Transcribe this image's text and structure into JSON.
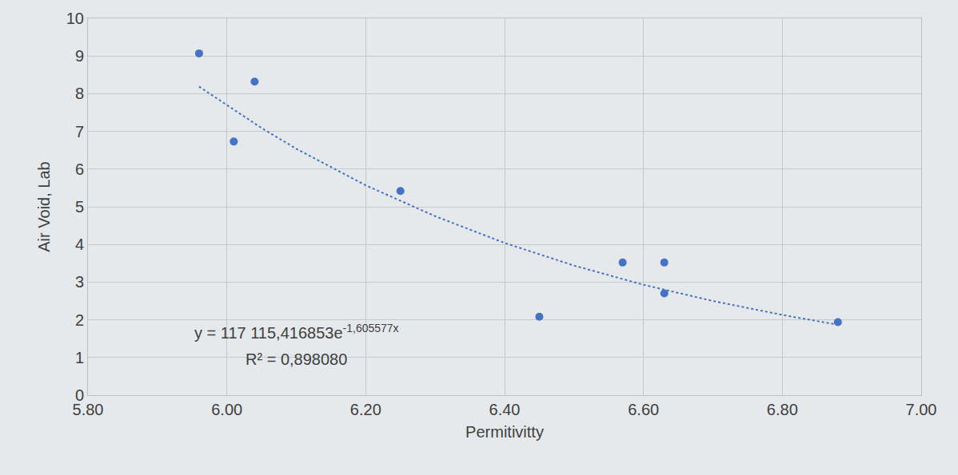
{
  "chart_data": {
    "type": "scatter",
    "x_label": "Permitivitty",
    "y_label": "Air Void, Lab",
    "xlim": [
      5.8,
      7.0
    ],
    "xticks": [
      {
        "value": 5.8,
        "label": "5.80"
      },
      {
        "value": 6.0,
        "label": "6.00"
      },
      {
        "value": 6.2,
        "label": "6.20"
      },
      {
        "value": 6.4,
        "label": "6.40"
      },
      {
        "value": 6.6,
        "label": "6.60"
      },
      {
        "value": 6.8,
        "label": "6.80"
      },
      {
        "value": 7.0,
        "label": "7.00"
      }
    ],
    "ylim": [
      0,
      10
    ],
    "yticks": [
      0,
      1,
      2,
      3,
      4,
      5,
      6,
      7,
      8,
      9,
      10
    ],
    "grid": true,
    "series": [
      {
        "type": "scatter",
        "marker": "circle",
        "color": "#4472c4",
        "x": [
          5.96,
          6.01,
          6.04,
          6.25,
          6.45,
          6.57,
          6.63,
          6.63,
          6.88
        ],
        "values": [
          9.07,
          6.73,
          8.32,
          5.42,
          2.08,
          3.52,
          3.52,
          2.7,
          1.94
        ]
      },
      {
        "type": "line",
        "line_style": "dotted",
        "color": "#4472c4",
        "x": [
          5.96,
          6.05,
          6.1,
          6.2,
          6.3,
          6.4,
          6.5,
          6.6,
          6.7,
          6.8,
          6.88
        ],
        "values": [
          8.19,
          7.09,
          6.54,
          5.57,
          4.75,
          4.04,
          3.44,
          2.93,
          2.5,
          2.13,
          1.87
        ]
      }
    ],
    "annotations": [
      {
        "text": "y = 117 115,416853e",
        "superscript": "-1,605577x",
        "x": 6.1,
        "y": 1.69
      },
      {
        "text": "R² = 0,898080",
        "x": 6.1,
        "y": 0.95
      }
    ]
  }
}
